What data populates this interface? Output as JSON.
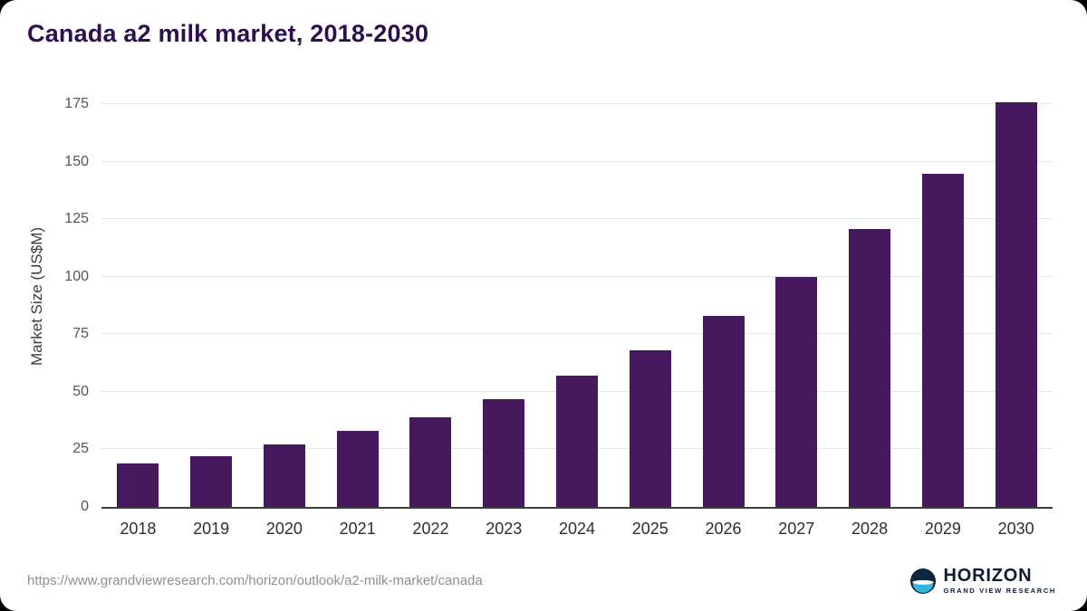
{
  "page": {
    "source_url": "https://www.grandviewresearch.com/horizon/outlook/a2-milk-market/canada"
  },
  "logo": {
    "name": "HORIZON",
    "subtitle": "GRAND VIEW RESEARCH"
  },
  "colors": {
    "bar": "#46195f",
    "title": "#2d0e4e",
    "gridline": "#e7e7e7",
    "footer_text": "#8f8f8f",
    "logo_navy": "#0c2740",
    "logo_cyan": "#35b6e2"
  },
  "chart_data": {
    "type": "bar",
    "title": "Canada a2 milk market, 2018-2030",
    "categories": [
      "2018",
      "2019",
      "2020",
      "2021",
      "2022",
      "2023",
      "2024",
      "2025",
      "2026",
      "2027",
      "2028",
      "2029",
      "2030"
    ],
    "values": [
      19,
      22,
      27,
      33,
      39,
      47,
      57,
      68,
      83,
      100,
      121,
      145,
      176
    ],
    "xlabel": "",
    "ylabel": "Market Size (US$M)",
    "yticks": [
      0,
      25,
      50,
      75,
      100,
      125,
      150,
      175
    ],
    "ylim": [
      0,
      183
    ],
    "grid": true,
    "legend": false
  }
}
